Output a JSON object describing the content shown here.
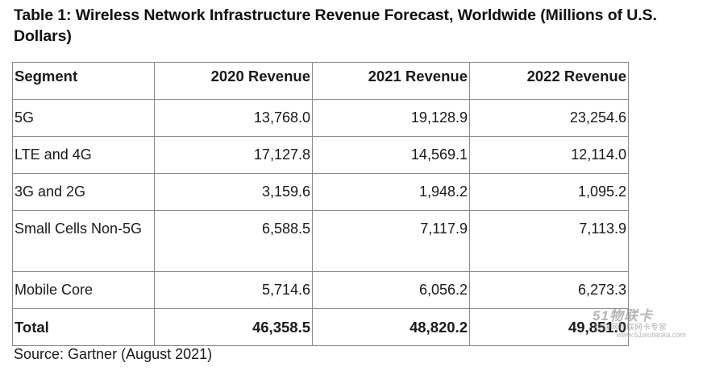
{
  "title": "Table 1: Wireless Network Infrastructure Revenue Forecast, Worldwide (Millions of U.S. Dollars)",
  "table": {
    "headers": [
      "Segment",
      "2020 Revenue",
      "2021 Revenue",
      "2022 Revenue"
    ],
    "rows": [
      [
        "5G",
        "13,768.0",
        "19,128.9",
        "23,254.6"
      ],
      [
        "LTE and 4G",
        "17,127.8",
        "14,569.1",
        "12,114.0"
      ],
      [
        "3G and 2G",
        "3,159.6",
        "1,948.2",
        "1,095.2"
      ],
      [
        "Small Cells Non-5G",
        "6,588.5",
        "7,117.9",
        "7,113.9"
      ],
      [
        "Mobile Core",
        "5,714.6",
        "6,056.2",
        "6,273.3"
      ]
    ],
    "total": [
      "Total",
      "46,358.5",
      "48,820.2",
      "49,851.0"
    ]
  },
  "source": "Source: Gartner (August 2021)",
  "watermark": {
    "logo": "51物联卡",
    "tagline": "物联网物联网卡专家",
    "url": "www.51wulianka.com"
  }
}
